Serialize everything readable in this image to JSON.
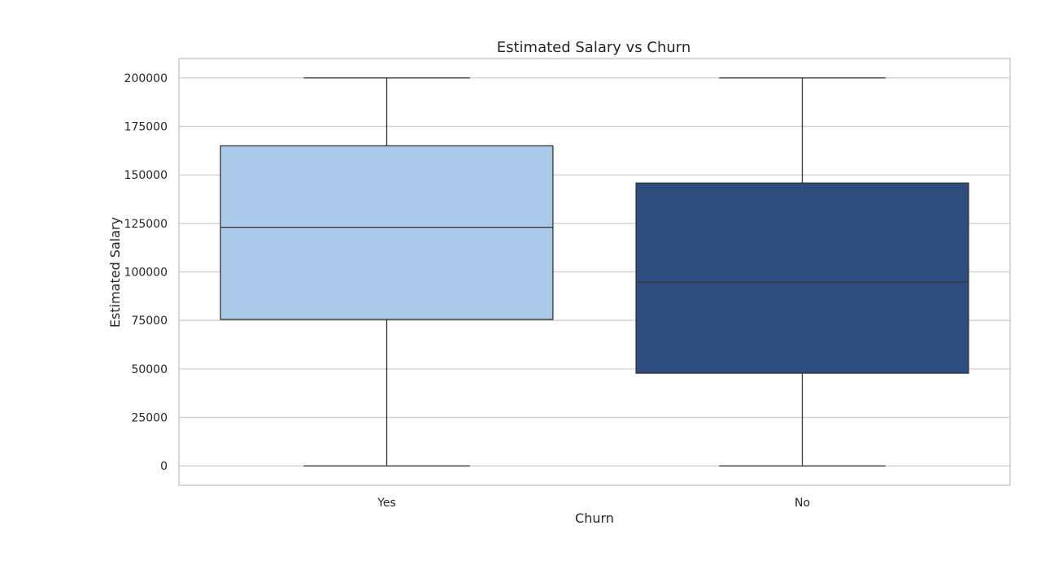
{
  "chart_data": {
    "type": "box",
    "title": "Estimated Salary vs Churn",
    "xlabel": "Churn",
    "ylabel": "Estimated Salary",
    "ylim": [
      -10000,
      210000
    ],
    "yticks": [
      0,
      25000,
      50000,
      75000,
      100000,
      125000,
      150000,
      175000,
      200000
    ],
    "ytick_labels": [
      "0",
      "25000",
      "50000",
      "75000",
      "100000",
      "125000",
      "150000",
      "175000",
      "200000"
    ],
    "grid": "horizontal",
    "categories": [
      "Yes",
      "No"
    ],
    "boxes": [
      {
        "category": "Yes",
        "whisker_low": 0,
        "q1": 75500,
        "median": 123000,
        "q3": 165000,
        "whisker_high": 200000,
        "color": "#abc9e9"
      },
      {
        "category": "No",
        "whisker_low": 0,
        "q1": 47800,
        "median": 94800,
        "q3": 145800,
        "whisker_high": 200000,
        "color": "#2d4d7e"
      }
    ]
  }
}
